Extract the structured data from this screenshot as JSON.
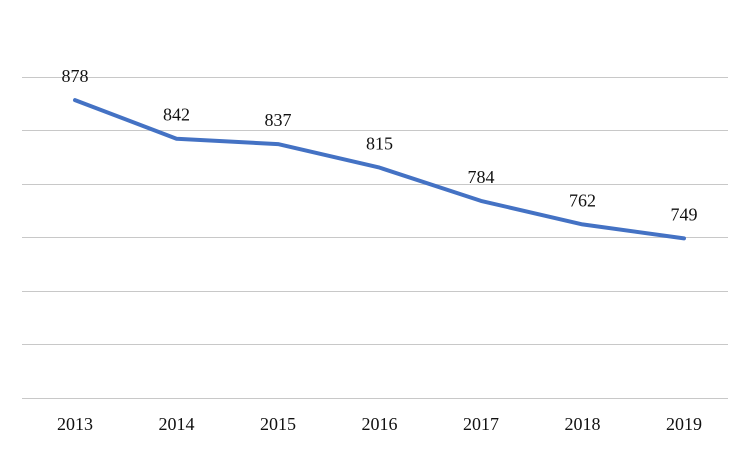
{
  "chart_data": {
    "type": "line",
    "categories": [
      "2013",
      "2014",
      "2015",
      "2016",
      "2017",
      "2018",
      "2019"
    ],
    "series": [
      {
        "values": [
          878,
          842,
          837,
          815,
          784,
          762,
          749
        ],
        "color": "#4472C4"
      }
    ],
    "data_labels": [
      "878",
      "842",
      "837",
      "815",
      "784",
      "762",
      "749"
    ],
    "title": "",
    "xlabel": "",
    "ylabel": "",
    "ylim": [
      600,
      950
    ],
    "y_gridlines": [
      650,
      700,
      750,
      800,
      850,
      900
    ],
    "grid": "horizontal",
    "y_tick_labels_shown": false,
    "legend": "none"
  }
}
